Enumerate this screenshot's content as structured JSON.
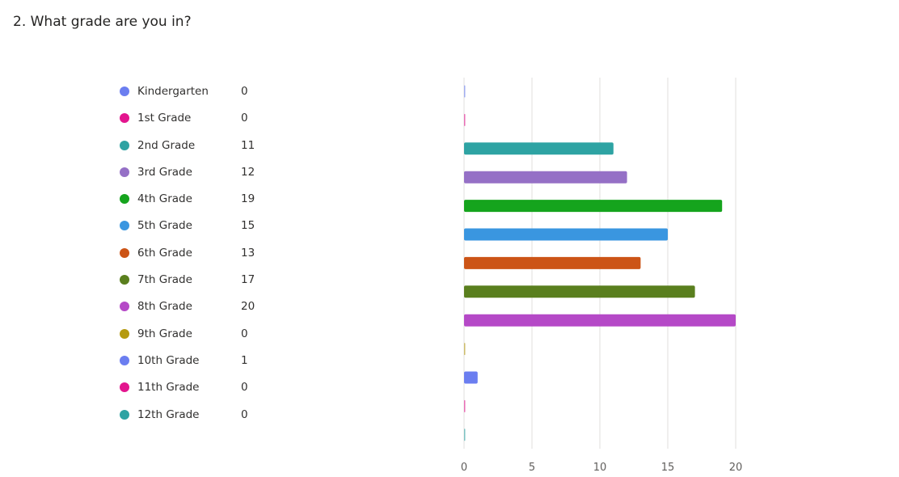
{
  "question": {
    "title": "2. What grade are you in?"
  },
  "chart_data": {
    "type": "bar",
    "orientation": "horizontal",
    "categories": [
      "Kindergarten",
      "1st Grade",
      "2nd Grade",
      "3rd Grade",
      "4th Grade",
      "5th Grade",
      "6th Grade",
      "7th Grade",
      "8th Grade",
      "9th Grade",
      "10th Grade",
      "11th Grade",
      "12th Grade"
    ],
    "values": [
      0,
      0,
      11,
      12,
      19,
      15,
      13,
      17,
      20,
      0,
      1,
      0,
      0
    ],
    "colors": [
      "#6b7ef0",
      "#e3158e",
      "#2ea3a3",
      "#9570c6",
      "#15a41d",
      "#3a96e0",
      "#cc5416",
      "#5a7f1e",
      "#b549c7",
      "#b59a10",
      "#6b7ef0",
      "#e3158e",
      "#2ea3a3"
    ],
    "xticks": [
      0,
      5,
      10,
      15,
      20
    ],
    "xlim": [
      0,
      20
    ],
    "grid": true,
    "legend_position": "left",
    "title": "",
    "xlabel": "",
    "ylabel": ""
  }
}
